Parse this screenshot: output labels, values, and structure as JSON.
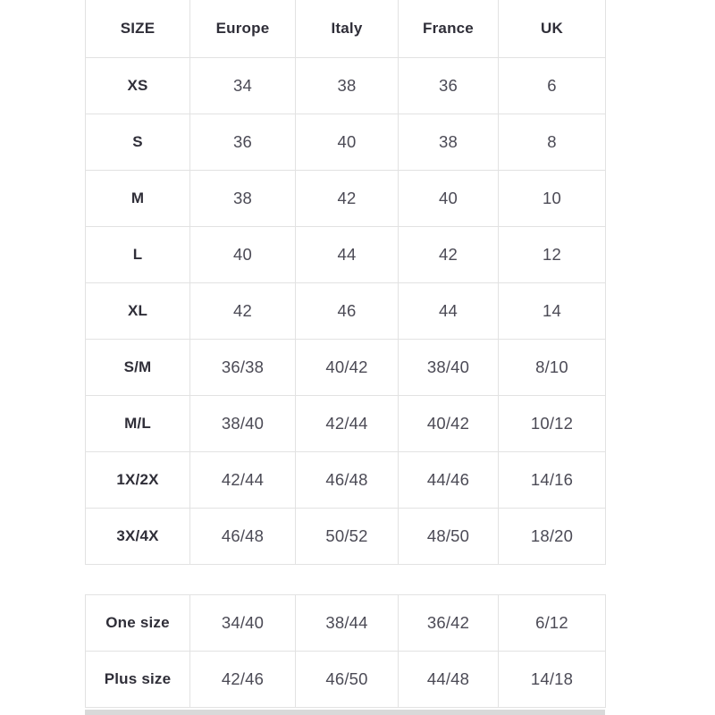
{
  "colors": {
    "background": "#ffffff",
    "border": "#e2e2e2",
    "header_text": "#2f2e38",
    "value_text": "#4b4a55",
    "bottom_divider": "#d9d9d9"
  },
  "main_table": {
    "columns": [
      "SIZE",
      "Europe",
      "Italy",
      "France",
      "UK"
    ],
    "rows": [
      {
        "label": "XS",
        "values": [
          "34",
          "38",
          "36",
          "6"
        ]
      },
      {
        "label": "S",
        "values": [
          "36",
          "40",
          "38",
          "8"
        ]
      },
      {
        "label": "M",
        "values": [
          "38",
          "42",
          "40",
          "10"
        ]
      },
      {
        "label": "L",
        "values": [
          "40",
          "44",
          "42",
          "12"
        ]
      },
      {
        "label": "XL",
        "values": [
          "42",
          "46",
          "44",
          "14"
        ]
      },
      {
        "label": "S/M",
        "values": [
          "36/38",
          "40/42",
          "38/40",
          "8/10"
        ]
      },
      {
        "label": "M/L",
        "values": [
          "38/40",
          "42/44",
          "40/42",
          "10/12"
        ]
      },
      {
        "label": "1X/2X",
        "values": [
          "42/44",
          "46/48",
          "44/46",
          "14/16"
        ]
      },
      {
        "label": "3X/4X",
        "values": [
          "46/48",
          "50/52",
          "48/50",
          "18/20"
        ]
      }
    ]
  },
  "special_table": {
    "rows": [
      {
        "label": "One size",
        "values": [
          "34/40",
          "38/44",
          "36/42",
          "6/12"
        ]
      },
      {
        "label": "Plus size",
        "values": [
          "42/46",
          "46/50",
          "44/48",
          "14/18"
        ]
      }
    ]
  }
}
